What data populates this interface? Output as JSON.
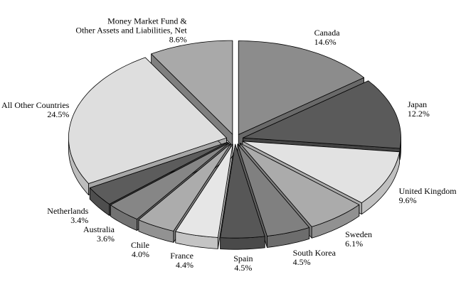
{
  "chart_data": {
    "type": "pie",
    "style": "3d-exploded",
    "categories": [
      "Canada",
      "Japan",
      "United Kingdom",
      "Sweden",
      "South Korea",
      "Spain",
      "France",
      "Chile",
      "Australia",
      "Netherlands",
      "All Other Countries",
      "Money Market Fund &\nOther Assets and Liabilities, Net"
    ],
    "values": [
      14.6,
      12.2,
      9.6,
      6.1,
      4.5,
      4.5,
      4.4,
      4.0,
      3.6,
      3.4,
      24.5,
      8.6
    ],
    "value_labels": [
      "14.6%",
      "12.2%",
      "9.6%",
      "6.1%",
      "4.5%",
      "4.5%",
      "4.4%",
      "4.0%",
      "3.6%",
      "3.4%",
      "24.5%",
      "8.6%"
    ],
    "colors": [
      "#8c8c8c",
      "#5a5a5a",
      "#e2e2e2",
      "#ababab",
      "#808080",
      "#575757",
      "#e6e6e6",
      "#acacac",
      "#868686",
      "#5c5c5c",
      "#dedede",
      "#a9a9a9"
    ]
  }
}
